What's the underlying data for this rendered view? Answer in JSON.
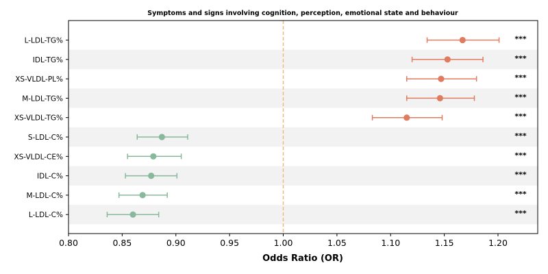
{
  "chart_data": {
    "type": "forest",
    "title": "Symptoms and signs involving cognition, perception, emotional state and behaviour",
    "xlabel": "Odds Ratio (OR)",
    "ylabel": "",
    "xlim": [
      0.8,
      1.237
    ],
    "x_ticks": [
      "0.80",
      "0.85",
      "0.90",
      "0.95",
      "1.00",
      "1.05",
      "1.10",
      "1.15",
      "1.20"
    ],
    "reference_line": 1.0,
    "significance_label": "***",
    "grid": false,
    "alternating_row_shading": true,
    "colors": {
      "risk": "#e07b5f",
      "protective": "#88b99c",
      "reference_line": "#f5b87a",
      "row_shade": "#f2f2f2"
    },
    "rows": [
      {
        "label": "L-LDL-TG%",
        "or": 1.167,
        "ci_low": 1.134,
        "ci_high": 1.201,
        "sig": "***",
        "group": "risk"
      },
      {
        "label": "IDL-TG%",
        "or": 1.153,
        "ci_low": 1.12,
        "ci_high": 1.186,
        "sig": "***",
        "group": "risk"
      },
      {
        "label": "XS-VLDL-PL%",
        "or": 1.147,
        "ci_low": 1.115,
        "ci_high": 1.18,
        "sig": "***",
        "group": "risk"
      },
      {
        "label": "M-LDL-TG%",
        "or": 1.146,
        "ci_low": 1.115,
        "ci_high": 1.178,
        "sig": "***",
        "group": "risk"
      },
      {
        "label": "XS-VLDL-TG%",
        "or": 1.115,
        "ci_low": 1.083,
        "ci_high": 1.148,
        "sig": "***",
        "group": "risk"
      },
      {
        "label": "S-LDL-C%",
        "or": 0.887,
        "ci_low": 0.864,
        "ci_high": 0.911,
        "sig": "***",
        "group": "protective"
      },
      {
        "label": "XS-VLDL-CE%",
        "or": 0.879,
        "ci_low": 0.855,
        "ci_high": 0.905,
        "sig": "***",
        "group": "protective"
      },
      {
        "label": "IDL-C%",
        "or": 0.877,
        "ci_low": 0.853,
        "ci_high": 0.901,
        "sig": "***",
        "group": "protective"
      },
      {
        "label": "M-LDL-C%",
        "or": 0.869,
        "ci_low": 0.847,
        "ci_high": 0.892,
        "sig": "***",
        "group": "protective"
      },
      {
        "label": "L-LDL-C%",
        "or": 0.86,
        "ci_low": 0.836,
        "ci_high": 0.884,
        "sig": "***",
        "group": "protective"
      }
    ]
  }
}
